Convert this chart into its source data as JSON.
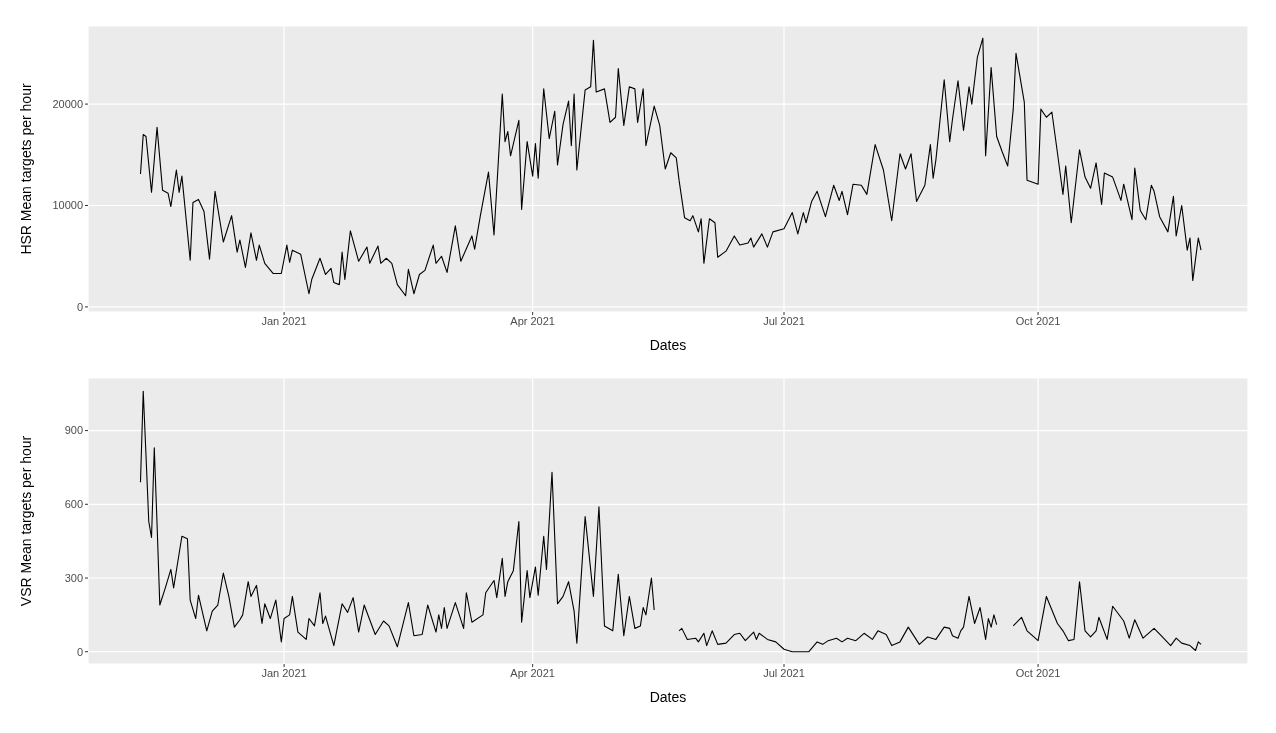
{
  "chart_data": [
    {
      "type": "line",
      "xlabel": "Dates",
      "ylabel": "HSR Mean targets per hour",
      "xlim": [
        "2020-10-22",
        "2021-12-16"
      ],
      "xticks": [
        {
          "value": "2021-01-01",
          "label": "Jan 2021"
        },
        {
          "value": "2021-04-01",
          "label": "Apr 2021"
        },
        {
          "value": "2021-07-01",
          "label": "Jul 2021"
        },
        {
          "value": "2021-10-01",
          "label": "Oct 2021"
        }
      ],
      "ylim": [
        -500,
        27700
      ],
      "yticks": [
        0,
        10000,
        20000
      ],
      "grid": true,
      "x": [
        "2020-11-10",
        "2020-11-11",
        "2020-11-12",
        "2020-11-14",
        "2020-11-16",
        "2020-11-18",
        "2020-11-20",
        "2020-11-21",
        "2020-11-23",
        "2020-11-24",
        "2020-11-25",
        "2020-11-28",
        "2020-11-29",
        "2020-12-01",
        "2020-12-03",
        "2020-12-05",
        "2020-12-07",
        "2020-12-10",
        "2020-12-13",
        "2020-12-15",
        "2020-12-16",
        "2020-12-18",
        "2020-12-20",
        "2020-12-22",
        "2020-12-23",
        "2020-12-25",
        "2020-12-28",
        "2020-12-31",
        "2021-01-02",
        "2021-01-03",
        "2021-01-04",
        "2021-01-07",
        "2021-01-10",
        "2021-01-11",
        "2021-01-14",
        "2021-01-16",
        "2021-01-18",
        "2021-01-19",
        "2021-01-21",
        "2021-01-22",
        "2021-01-23",
        "2021-01-25",
        "2021-01-28",
        "2021-01-31",
        "2021-02-01",
        "2021-02-04",
        "2021-02-05",
        "2021-02-07",
        "2021-02-09",
        "2021-02-11",
        "2021-02-14",
        "2021-02-15",
        "2021-02-17",
        "2021-02-19",
        "2021-02-21",
        "2021-02-24",
        "2021-02-25",
        "2021-02-27",
        "2021-03-01",
        "2021-03-04",
        "2021-03-06",
        "2021-03-10",
        "2021-03-11",
        "2021-03-13",
        "2021-03-16",
        "2021-03-18",
        "2021-03-21",
        "2021-03-22",
        "2021-03-23",
        "2021-03-24",
        "2021-03-27",
        "2021-03-28",
        "2021-03-30",
        "2021-04-01",
        "2021-04-02",
        "2021-04-03",
        "2021-04-05",
        "2021-04-07",
        "2021-04-09",
        "2021-04-10",
        "2021-04-12",
        "2021-04-14",
        "2021-04-15",
        "2021-04-16",
        "2021-04-17",
        "2021-04-20",
        "2021-04-22",
        "2021-04-23",
        "2021-04-24",
        "2021-04-27",
        "2021-04-29",
        "2021-05-01",
        "2021-05-02",
        "2021-05-04",
        "2021-05-06",
        "2021-05-08",
        "2021-05-09",
        "2021-05-11",
        "2021-05-12",
        "2021-05-15",
        "2021-05-17",
        "2021-05-19",
        "2021-05-21",
        "2021-05-23",
        "2021-05-24",
        "2021-05-26",
        "2021-05-28",
        "2021-05-29",
        "2021-05-31",
        "2021-06-01",
        "2021-06-02",
        "2021-06-04",
        "2021-06-06",
        "2021-06-07",
        "2021-06-10",
        "2021-06-13",
        "2021-06-15",
        "2021-06-18",
        "2021-06-19",
        "2021-06-20",
        "2021-06-23",
        "2021-06-25",
        "2021-06-27",
        "2021-07-01",
        "2021-07-04",
        "2021-07-06",
        "2021-07-08",
        "2021-07-09",
        "2021-07-11",
        "2021-07-13",
        "2021-07-16",
        "2021-07-19",
        "2021-07-21",
        "2021-07-22",
        "2021-07-24",
        "2021-07-26",
        "2021-07-29",
        "2021-07-31",
        "2021-08-03",
        "2021-08-06",
        "2021-08-09",
        "2021-08-12",
        "2021-08-14",
        "2021-08-16",
        "2021-08-18",
        "2021-08-21",
        "2021-08-23",
        "2021-08-24",
        "2021-08-25",
        "2021-08-28",
        "2021-08-30",
        "2021-08-31",
        "2021-09-02",
        "2021-09-04",
        "2021-09-06",
        "2021-09-07",
        "2021-09-09",
        "2021-09-11",
        "2021-09-12",
        "2021-09-14",
        "2021-09-16",
        "2021-09-18",
        "2021-09-20",
        "2021-09-22",
        "2021-09-23",
        "2021-09-26",
        "2021-09-27",
        "2021-10-01",
        "2021-10-02",
        "2021-10-04",
        "2021-10-06",
        "2021-10-08",
        "2021-10-10",
        "2021-10-11",
        "2021-10-13",
        "2021-10-16",
        "2021-10-18",
        "2021-10-20",
        "2021-10-22",
        "2021-10-24",
        "2021-10-25",
        "2021-10-28",
        "2021-10-31",
        "2021-11-01",
        "2021-11-04",
        "2021-11-05",
        "2021-11-07",
        "2021-11-09",
        "2021-11-11",
        "2021-11-12",
        "2021-11-14",
        "2021-11-17",
        "2021-11-19",
        "2021-11-20",
        "2021-11-22",
        "2021-11-24",
        "2021-11-25",
        "2021-11-26",
        "2021-11-28",
        "2021-11-29"
      ],
      "series": [
        {
          "color": "#000000",
          "values": [
            13100,
            17000,
            16800,
            11300,
            17700,
            11500,
            11200,
            9900,
            13500,
            11300,
            12900,
            4600,
            10300,
            10600,
            9400,
            4700,
            11400,
            6400,
            9000,
            5400,
            6600,
            3900,
            7300,
            4600,
            6100,
            4300,
            3300,
            3300,
            6100,
            4400,
            5600,
            5200,
            1300,
            2700,
            4800,
            3200,
            3800,
            2400,
            2200,
            5400,
            2700,
            7500,
            4500,
            5900,
            4300,
            6000,
            4300,
            4800,
            4300,
            2200,
            1100,
            3700,
            1300,
            3200,
            3600,
            6100,
            4300,
            5000,
            3400,
            8000,
            4500,
            7000,
            5700,
            8900,
            13300,
            7100,
            21000,
            16300,
            17300,
            14900,
            18400,
            9600,
            16300,
            12900,
            16100,
            12700,
            21500,
            16600,
            19300,
            14000,
            18000,
            20300,
            15900,
            21000,
            13500,
            21400,
            21700,
            26300,
            21200,
            21500,
            18200,
            18700,
            23500,
            17900,
            21700,
            21500,
            18200,
            21500,
            15900,
            19800,
            17900,
            13600,
            15200,
            14700,
            12500,
            8800,
            8500,
            9000,
            7400,
            8700,
            4300,
            8700,
            8300,
            4900,
            5500,
            7000,
            6100,
            6300,
            6800,
            5900,
            7200,
            5900,
            7400,
            7700,
            9300,
            7200,
            9300,
            8300,
            10400,
            11400,
            8900,
            12000,
            10500,
            11400,
            9100,
            12100,
            12000,
            11100,
            16000,
            13500,
            8500,
            15100,
            13600,
            15100,
            10400,
            12000,
            16000,
            12700,
            14500,
            22400,
            16300,
            18500,
            22300,
            17400,
            21700,
            20000,
            24600,
            26500,
            14900,
            23600,
            16800,
            15300,
            13900,
            19500,
            25000,
            20200,
            12500,
            12100,
            19500,
            18700,
            19200,
            15200,
            11100,
            13900,
            8300,
            15500,
            12800,
            11700,
            14200,
            10100,
            13200,
            12800,
            10500,
            12100,
            8600,
            13700,
            9500,
            8600,
            12000,
            11400,
            8900,
            7400,
            10900,
            7000,
            10000,
            5600,
            6800,
            2600,
            6800,
            5600
          ]
        }
      ]
    },
    {
      "type": "line",
      "xlabel": "Dates",
      "ylabel": "VSR Mean targets per hour",
      "xlim": [
        "2020-10-22",
        "2021-12-16"
      ],
      "xticks": [
        {
          "value": "2021-01-01",
          "label": "Jan 2021"
        },
        {
          "value": "2021-04-01",
          "label": "Apr 2021"
        },
        {
          "value": "2021-07-01",
          "label": "Jul 2021"
        },
        {
          "value": "2021-10-01",
          "label": "Oct 2021"
        }
      ],
      "ylim": [
        -50,
        1114
      ],
      "yticks": [
        0,
        300,
        600,
        900
      ],
      "grid": true,
      "x": [
        "2020-11-10",
        "2020-11-11",
        "2020-11-12",
        "2020-11-13",
        "2020-11-14",
        "2020-11-15",
        "2020-11-16",
        "2020-11-17",
        "2020-11-19",
        "2020-11-21",
        "2020-11-22",
        "2020-11-25",
        "2020-11-27",
        "2020-11-28",
        "2020-11-30",
        "2020-12-01",
        "2020-12-04",
        "2020-12-06",
        "2020-12-08",
        "2020-12-10",
        "2020-12-12",
        "2020-12-14",
        "2020-12-16",
        "2020-12-17",
        "2020-12-19",
        "2020-12-20",
        "2020-12-22",
        "2020-12-24",
        "2020-12-25",
        "2020-12-27",
        "2020-12-29",
        "2020-12-31",
        "2021-01-01",
        "2021-01-03",
        "2021-01-04",
        "2021-01-06",
        "2021-01-09",
        "2021-01-10",
        "2021-01-12",
        "2021-01-14",
        "2021-01-15",
        "2021-01-16",
        "2021-01-19",
        "2021-01-22",
        "2021-01-24",
        "2021-01-26",
        "2021-01-28",
        "2021-01-30",
        "2021-02-03",
        "2021-02-06",
        "2021-02-08",
        "2021-02-11",
        "2021-02-15",
        "2021-02-17",
        "2021-02-20",
        "2021-02-22",
        "2021-02-25",
        "2021-02-26",
        "2021-02-27",
        "2021-02-28",
        "2021-03-01",
        "2021-03-04",
        "2021-03-07",
        "2021-03-08",
        "2021-03-10",
        "2021-03-14",
        "2021-03-15",
        "2021-03-18",
        "2021-03-19",
        "2021-03-21",
        "2021-03-22",
        "2021-03-23",
        "2021-03-25",
        "2021-03-27",
        "2021-03-28",
        "2021-03-30",
        "2021-03-31",
        "2021-04-02",
        "2021-04-03",
        "2021-04-05",
        "2021-04-06",
        "2021-04-08",
        "2021-04-10",
        "2021-04-12",
        "2021-04-14",
        "2021-04-16",
        "2021-04-17",
        "2021-04-20",
        "2021-04-23",
        "2021-04-25",
        "2021-04-27",
        "2021-04-30",
        "2021-05-02",
        "2021-05-04",
        "2021-05-06",
        "2021-05-08",
        "2021-05-10",
        "2021-05-11",
        "2021-05-12",
        "2021-05-14",
        "2021-05-15",
        "2021-05-19",
        "2021-05-24",
        "2021-05-25",
        "2021-05-27",
        "2021-05-30",
        "2021-05-31",
        "2021-06-02",
        "2021-06-03",
        "2021-06-05",
        "2021-06-07",
        "2021-06-10",
        "2021-06-13",
        "2021-06-15",
        "2021-06-17",
        "2021-06-20",
        "2021-06-21",
        "2021-06-22",
        "2021-06-25",
        "2021-06-28",
        "2021-07-01",
        "2021-07-04",
        "2021-07-08",
        "2021-07-10",
        "2021-07-13",
        "2021-07-15",
        "2021-07-17",
        "2021-07-20",
        "2021-07-22",
        "2021-07-24",
        "2021-07-27",
        "2021-07-30",
        "2021-08-02",
        "2021-08-04",
        "2021-08-07",
        "2021-08-09",
        "2021-08-12",
        "2021-08-15",
        "2021-08-19",
        "2021-08-22",
        "2021-08-25",
        "2021-08-28",
        "2021-08-30",
        "2021-08-31",
        "2021-09-02",
        "2021-09-03",
        "2021-09-04",
        "2021-09-06",
        "2021-09-08",
        "2021-09-10",
        "2021-09-12",
        "2021-09-13",
        "2021-09-14",
        "2021-09-15",
        "2021-09-16",
        "2021-09-19",
        "2021-09-22",
        "2021-09-25",
        "2021-09-27",
        "2021-10-01",
        "2021-10-04",
        "2021-10-08",
        "2021-10-10",
        "2021-10-12",
        "2021-10-14",
        "2021-10-16",
        "2021-10-18",
        "2021-10-20",
        "2021-10-22",
        "2021-10-23",
        "2021-10-26",
        "2021-10-28",
        "2021-11-01",
        "2021-11-03",
        "2021-11-05",
        "2021-11-08",
        "2021-11-12",
        "2021-11-15",
        "2021-11-18",
        "2021-11-20",
        "2021-11-22",
        "2021-11-25",
        "2021-11-27",
        "2021-11-28",
        "2021-11-29"
      ],
      "series": [
        {
          "color": "#000000",
          "values": [
            690,
            1060,
            800,
            530,
            465,
            830,
            520,
            190,
            260,
            335,
            260,
            470,
            460,
            210,
            135,
            230,
            85,
            165,
            190,
            320,
            225,
            100,
            130,
            150,
            285,
            225,
            270,
            115,
            195,
            135,
            210,
            40,
            135,
            150,
            225,
            80,
            50,
            135,
            105,
            240,
            115,
            145,
            25,
            195,
            160,
            220,
            80,
            190,
            70,
            125,
            105,
            20,
            200,
            65,
            70,
            190,
            80,
            150,
            95,
            180,
            95,
            200,
            95,
            240,
            120,
            150,
            240,
            290,
            220,
            380,
            225,
            285,
            330,
            530,
            120,
            330,
            220,
            345,
            230,
            470,
            335,
            730,
            195,
            225,
            285,
            165,
            35,
            550,
            225,
            590,
            105,
            85,
            315,
            65,
            225,
            95,
            105,
            180,
            150,
            300,
            170,
            null,
            85,
            95,
            50,
            55,
            40,
            75,
            25,
            85,
            30,
            35,
            70,
            75,
            45,
            80,
            50,
            75,
            50,
            40,
            10,
            0,
            0,
            0,
            40,
            30,
            45,
            55,
            40,
            55,
            45,
            75,
            50,
            85,
            70,
            25,
            40,
            100,
            30,
            60,
            50,
            100,
            95,
            65,
            55,
            85,
            100,
            225,
            115,
            180,
            50,
            135,
            100,
            150,
            110,
            null,
            105,
            140,
            85,
            45,
            225,
            115,
            85,
            45,
            50,
            285,
            85,
            60,
            85,
            140,
            50,
            185,
            125,
            55,
            130,
            55,
            95,
            60,
            25,
            55,
            35,
            25,
            5,
            40,
            30
          ]
        }
      ]
    }
  ]
}
